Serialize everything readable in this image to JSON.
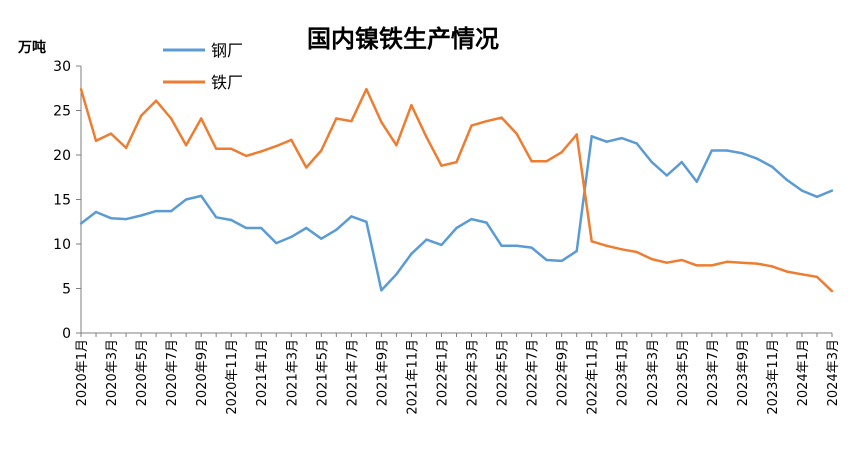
{
  "chart_data": {
    "type": "line",
    "title": "国内镍铁生产情况",
    "ylabel": "万吨",
    "ylim": [
      0,
      30
    ],
    "yticks": [
      0,
      5,
      10,
      15,
      20,
      25,
      30
    ],
    "grid": false,
    "legend_position": "top-left",
    "x": [
      "2020年1月",
      "2020年2月",
      "2020年3月",
      "2020年4月",
      "2020年5月",
      "2020年6月",
      "2020年7月",
      "2020年8月",
      "2020年9月",
      "2020年10月",
      "2020年11月",
      "2020年12月",
      "2021年1月",
      "2021年2月",
      "2021年3月",
      "2021年4月",
      "2021年5月",
      "2021年6月",
      "2021年7月",
      "2021年8月",
      "2021年9月",
      "2021年10月",
      "2021年11月",
      "2021年12月",
      "2022年1月",
      "2022年2月",
      "2022年3月",
      "2022年4月",
      "2022年5月",
      "2022年6月",
      "2022年7月",
      "2022年8月",
      "2022年9月",
      "2022年10月",
      "2022年11月",
      "2022年12月",
      "2023年1月",
      "2023年2月",
      "2023年3月",
      "2023年4月",
      "2023年5月",
      "2023年6月",
      "2023年7月",
      "2023年8月",
      "2023年9月",
      "2023年10月",
      "2023年11月",
      "2023年12月",
      "2024年1月",
      "2024年2月",
      "2024年3月"
    ],
    "xtick_labels": [
      "2020年1月",
      "2020年3月",
      "2020年5月",
      "2020年7月",
      "2020年9月",
      "2020年11月",
      "2021年1月",
      "2021年3月",
      "2021年5月",
      "2021年7月",
      "2021年9月",
      "2021年11月",
      "2022年1月",
      "2022年3月",
      "2022年5月",
      "2022年7月",
      "2022年9月",
      "2022年11月",
      "2023年1月",
      "2023年3月",
      "2023年5月",
      "2023年7月",
      "2023年9月",
      "2023年11月",
      "2024年1月",
      "2024年3月"
    ],
    "series": [
      {
        "name": "钢厂",
        "color": "#5b9bd5",
        "values": [
          12.3,
          13.6,
          12.9,
          12.8,
          13.2,
          13.7,
          13.7,
          15.0,
          15.4,
          13.0,
          12.7,
          11.8,
          11.8,
          10.1,
          10.8,
          11.8,
          10.6,
          11.6,
          13.1,
          12.5,
          4.8,
          6.6,
          8.9,
          10.5,
          9.9,
          11.8,
          12.8,
          12.4,
          9.8,
          9.8,
          9.6,
          8.2,
          8.1,
          9.2,
          22.1,
          21.5,
          21.9,
          21.3,
          19.2,
          17.7,
          19.2,
          17.0,
          20.5,
          20.5,
          20.2,
          19.6,
          18.7,
          17.2,
          16.0,
          15.3,
          16.0
        ]
      },
      {
        "name": "铁厂",
        "color": "#ed7d31",
        "values": [
          27.4,
          21.6,
          22.4,
          20.8,
          24.4,
          26.1,
          24.1,
          21.1,
          24.1,
          20.7,
          20.7,
          19.9,
          20.4,
          21.0,
          21.7,
          18.6,
          20.5,
          24.1,
          23.8,
          27.4,
          23.7,
          21.1,
          25.6,
          22.0,
          18.8,
          19.2,
          23.3,
          23.8,
          24.2,
          22.4,
          19.3,
          19.3,
          20.3,
          22.3,
          10.3,
          9.8,
          9.4,
          9.1,
          8.3,
          7.9,
          8.2,
          7.6,
          7.6,
          8.0,
          7.9,
          7.8,
          7.5,
          6.9,
          6.6,
          6.3,
          4.7
        ]
      }
    ]
  }
}
